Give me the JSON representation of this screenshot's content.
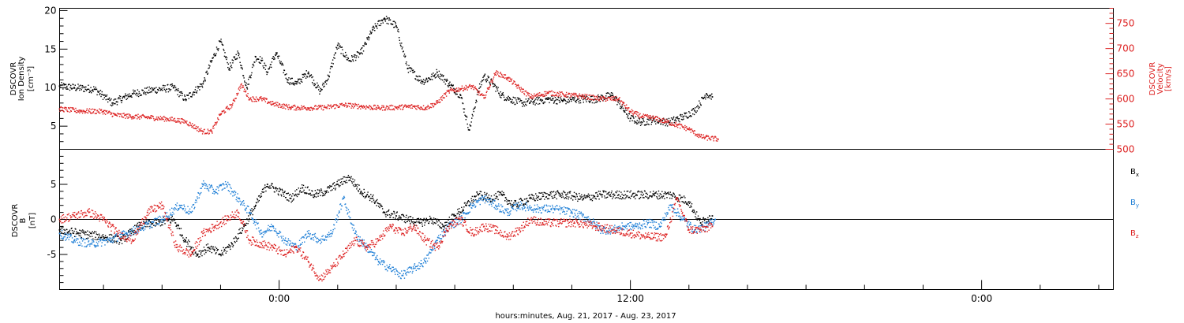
{
  "colors": {
    "black": "#000000",
    "red": "#dd2222",
    "blue": "#1f7fd6"
  },
  "chart_data": [
    {
      "type": "scatter",
      "panel": "top",
      "ylabel_lines": [
        "DSCOVR",
        "Ion Density",
        "[cm⁻³]"
      ],
      "y2label_lines": [
        "DSCOVR",
        "Velocity",
        "[km/s]"
      ],
      "ylim": [
        2,
        20.3
      ],
      "yticks": [
        5,
        10,
        15,
        20
      ],
      "y2lim": [
        500,
        780
      ],
      "y2ticks": [
        500,
        550,
        600,
        650,
        700,
        750
      ],
      "xlim_hours": [
        -7.5,
        28.5
      ],
      "series": [
        {
          "name": "",
          "axis": "left",
          "color": "#000000",
          "x_hours": [
            -7.5,
            -7.0,
            -6.3,
            -5.7,
            -5.0,
            -4.3,
            -3.6,
            -3.2,
            -2.6,
            -2.3,
            -2.0,
            -1.7,
            -1.4,
            -1.1,
            -0.8,
            -0.6,
            -0.4,
            -0.1,
            0.3,
            0.6,
            1.0,
            1.4,
            1.7,
            2.0,
            2.4,
            2.8,
            3.2,
            3.6,
            4.0,
            4.4,
            4.9,
            5.3,
            5.4,
            5.8,
            6.2,
            6.5,
            6.8,
            7.0,
            7.3,
            7.6,
            7.9,
            8.3,
            8.7,
            9.2,
            9.7,
            10.2,
            10.8,
            11.4,
            12.0,
            12.4,
            12.8,
            13.3,
            13.8,
            14.2,
            14.6,
            14.8
          ],
          "y": [
            10.2,
            10.0,
            9.8,
            8.0,
            9.2,
            9.7,
            10.0,
            8.5,
            10.5,
            13.5,
            16.0,
            12.5,
            14.5,
            10.0,
            14.0,
            13.5,
            12.0,
            14.5,
            11.0,
            10.5,
            12.0,
            9.5,
            11.5,
            15.5,
            13.5,
            14.5,
            17.5,
            19.0,
            18.0,
            12.5,
            10.8,
            11.5,
            12.0,
            10.5,
            9.0,
            4.5,
            9.5,
            11.5,
            10.5,
            9.0,
            8.5,
            8.0,
            8.2,
            8.5,
            8.3,
            8.5,
            8.5,
            9.0,
            6.0,
            5.5,
            5.8,
            5.5,
            6.2,
            7.0,
            9.2,
            8.8
          ]
        },
        {
          "name": "",
          "axis": "right",
          "color": "#dd2222",
          "x_hours": [
            -7.5,
            -6.8,
            -6.0,
            -5.6,
            -5.0,
            -4.4,
            -3.8,
            -3.2,
            -2.6,
            -2.3,
            -2.0,
            -1.6,
            -1.3,
            -1.0,
            -0.6,
            -0.2,
            0.4,
            1.0,
            1.6,
            2.2,
            2.8,
            3.4,
            4.0,
            4.6,
            5.0,
            5.4,
            5.8,
            6.2,
            6.6,
            7.0,
            7.4,
            7.8,
            8.2,
            8.6,
            9.2,
            9.8,
            10.4,
            11.0,
            11.6,
            12.0,
            12.4,
            12.8,
            13.2,
            13.6,
            14.0,
            14.4,
            14.7,
            15.0
          ],
          "y": [
            580,
            576,
            575,
            568,
            565,
            563,
            560,
            555,
            535,
            535,
            570,
            588,
            628,
            600,
            600,
            590,
            583,
            582,
            583,
            588,
            585,
            582,
            583,
            585,
            582,
            592,
            615,
            620,
            625,
            602,
            652,
            642,
            622,
            604,
            612,
            608,
            605,
            600,
            600,
            575,
            565,
            562,
            555,
            548,
            540,
            525,
            522,
            520
          ]
        }
      ]
    },
    {
      "type": "scatter",
      "panel": "bottom",
      "ylabel_lines": [
        "DSCOVR",
        "B",
        "[nT]"
      ],
      "ylim": [
        -10,
        10
      ],
      "yticks": [
        -5,
        0,
        5
      ],
      "xlim_hours": [
        -7.5,
        28.5
      ],
      "xticks_hours": [
        0,
        12,
        24
      ],
      "xtick_labels": [
        "0:00",
        "12:00",
        "0:00"
      ],
      "xlabel": "hours:minutes, Aug. 21, 2017 - Aug. 23, 2017",
      "series": [
        {
          "name": "Bx",
          "color": "#000000",
          "x_hours": [
            -7.5,
            -6.8,
            -6.0,
            -5.4,
            -4.8,
            -4.2,
            -3.6,
            -3.2,
            -2.8,
            -2.4,
            -2.0,
            -1.6,
            -1.2,
            -0.8,
            -0.4,
            0.0,
            0.4,
            0.8,
            1.2,
            1.6,
            2.0,
            2.4,
            2.8,
            3.2,
            3.6,
            4.0,
            4.4,
            4.8,
            5.2,
            5.6,
            6.0,
            6.4,
            6.8,
            7.2,
            7.6,
            8.0,
            8.6,
            9.2,
            9.8,
            10.4,
            11.0,
            11.6,
            12.2,
            12.8,
            13.4,
            14.0,
            14.4,
            14.8
          ],
          "y": [
            -1.5,
            -2.0,
            -2.5,
            -3.0,
            -1.0,
            -0.5,
            0.0,
            -3.0,
            -5.0,
            -4.0,
            -5.0,
            -3.5,
            -1.0,
            2.0,
            5.0,
            4.0,
            3.0,
            4.5,
            3.5,
            4.0,
            5.0,
            6.0,
            4.0,
            3.0,
            1.0,
            0.5,
            0.0,
            -0.5,
            0.0,
            -1.0,
            0.5,
            2.0,
            3.5,
            3.0,
            3.5,
            2.0,
            3.0,
            3.5,
            3.5,
            3.0,
            3.5,
            3.5,
            3.5,
            3.5,
            3.5,
            2.5,
            -0.5,
            0.5
          ]
        },
        {
          "name": "By",
          "color": "#1f7fd6",
          "x_hours": [
            -7.5,
            -7.0,
            -6.4,
            -5.8,
            -5.2,
            -4.6,
            -4.0,
            -3.4,
            -3.0,
            -2.6,
            -2.2,
            -1.8,
            -1.4,
            -1.0,
            -0.6,
            -0.2,
            0.2,
            0.6,
            1.0,
            1.4,
            1.8,
            2.2,
            2.6,
            3.0,
            3.4,
            3.8,
            4.2,
            4.6,
            5.0,
            5.4,
            5.8,
            6.2,
            6.6,
            7.0,
            7.4,
            7.8,
            8.2,
            8.8,
            9.4,
            10.0,
            10.6,
            11.0,
            11.4,
            11.8,
            12.2,
            12.6,
            13.0,
            13.4,
            13.8,
            14.2,
            14.6,
            14.9
          ],
          "y": [
            -2.0,
            -3.0,
            -3.5,
            -3.0,
            -2.0,
            -1.0,
            0.0,
            2.0,
            1.0,
            5.0,
            4.0,
            5.0,
            3.0,
            1.0,
            -2.0,
            -1.0,
            -3.0,
            -4.0,
            -2.0,
            -3.0,
            -2.0,
            3.0,
            -2.0,
            -4.0,
            -6.0,
            -7.0,
            -8.0,
            -7.0,
            -6.0,
            -3.0,
            -1.0,
            0.0,
            2.0,
            3.0,
            2.0,
            1.0,
            2.0,
            1.5,
            1.5,
            1.0,
            0.0,
            -1.5,
            -1.5,
            -1.0,
            -1.0,
            -0.5,
            -1.0,
            2.0,
            0.0,
            -1.5,
            -1.0,
            0.0
          ]
        },
        {
          "name": "Bz",
          "color": "#dd2222",
          "x_hours": [
            -7.5,
            -7.0,
            -6.5,
            -6.0,
            -5.5,
            -5.0,
            -4.5,
            -4.0,
            -3.5,
            -3.0,
            -2.6,
            -2.2,
            -1.8,
            -1.4,
            -1.0,
            -0.6,
            -0.2,
            0.2,
            0.6,
            1.0,
            1.4,
            1.8,
            2.2,
            2.6,
            3.0,
            3.4,
            3.8,
            4.2,
            4.6,
            5.0,
            5.4,
            5.8,
            6.2,
            6.6,
            7.0,
            7.4,
            7.8,
            8.2,
            8.6,
            9.0,
            9.6,
            10.2,
            10.8,
            11.4,
            12.0,
            12.6,
            13.2,
            13.6,
            14.0,
            14.4,
            14.8
          ],
          "y": [
            0.0,
            0.5,
            1.0,
            0.0,
            -2.0,
            -3.0,
            1.0,
            2.0,
            -4.0,
            -5.0,
            -2.0,
            -1.0,
            0.0,
            1.0,
            -3.0,
            -3.5,
            -4.0,
            -5.0,
            -4.0,
            -6.0,
            -8.5,
            -7.0,
            -5.0,
            -3.0,
            -4.0,
            -3.0,
            -1.0,
            -2.0,
            -1.0,
            -3.0,
            -4.0,
            -1.0,
            0.0,
            -2.0,
            -1.0,
            -1.5,
            -2.5,
            -1.5,
            0.0,
            -0.5,
            -0.5,
            -0.5,
            -1.0,
            -1.5,
            -2.0,
            -2.5,
            -2.5,
            3.0,
            -1.5,
            -1.5,
            -1.0
          ]
        }
      ]
    }
  ]
}
